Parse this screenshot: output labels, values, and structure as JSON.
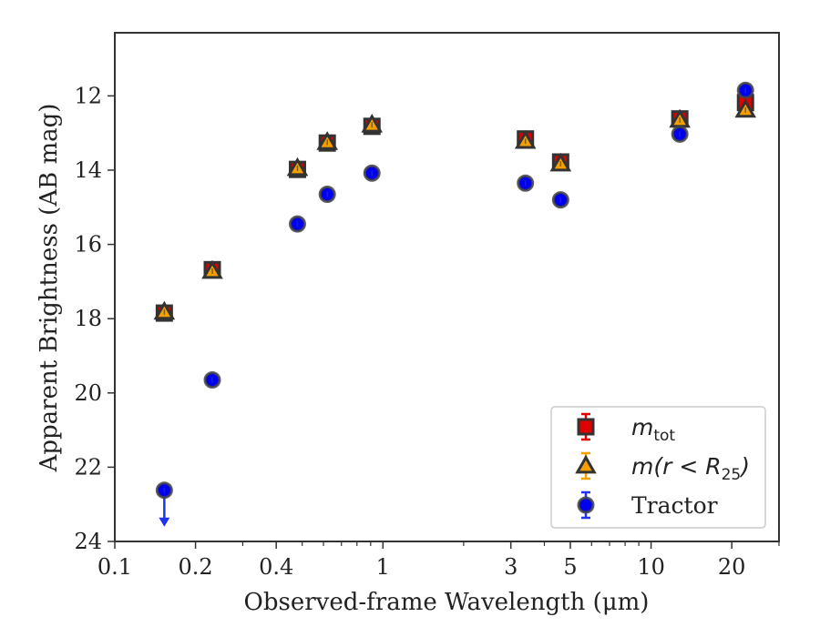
{
  "chart_data": {
    "type": "scatter",
    "xlabel": "Observed-frame Wavelength (μm)",
    "ylabel": "Apparent Brightness (AB mag)",
    "xscale": "log",
    "xlim": [
      0.1,
      30
    ],
    "ylim": [
      24,
      10.3
    ],
    "y_inverted": true,
    "grid": false,
    "legend_position": "lower-right",
    "x_ticks": [
      0.1,
      0.2,
      0.4,
      1,
      3,
      5,
      10,
      20
    ],
    "x_tick_labels": [
      "0.1",
      "0.2",
      "0.4",
      "1",
      "3",
      "5",
      "10",
      "20"
    ],
    "y_ticks": [
      12,
      14,
      16,
      18,
      20,
      22,
      24
    ],
    "y_tick_labels": [
      "12",
      "14",
      "16",
      "18",
      "20",
      "22",
      "24"
    ],
    "series": [
      {
        "name": "m_tot",
        "legend": {
          "main": "m",
          "sub": "tot"
        },
        "marker": "square",
        "color": "#e00000",
        "edge_color": "#333333",
        "error_color": "#e00000",
        "points": [
          {
            "x": 0.153,
            "y": 17.85
          },
          {
            "x": 0.231,
            "y": 16.68
          },
          {
            "x": 0.48,
            "y": 13.98
          },
          {
            "x": 0.62,
            "y": 13.27
          },
          {
            "x": 0.91,
            "y": 12.82
          },
          {
            "x": 3.4,
            "y": 13.16
          },
          {
            "x": 4.6,
            "y": 13.78
          },
          {
            "x": 12.8,
            "y": 12.62
          },
          {
            "x": 22.5,
            "y": 12.18
          }
        ]
      },
      {
        "name": "m(r < R25)",
        "legend": {
          "pre": "m(r < R",
          "sub": "25",
          "post": ")"
        },
        "marker": "triangle",
        "color": "#f5a000",
        "edge_color": "#333333",
        "error_color": "#f5a000",
        "points": [
          {
            "x": 0.153,
            "y": 17.82
          },
          {
            "x": 0.231,
            "y": 16.72
          },
          {
            "x": 0.48,
            "y": 13.95
          },
          {
            "x": 0.62,
            "y": 13.25
          },
          {
            "x": 0.91,
            "y": 12.78
          },
          {
            "x": 3.4,
            "y": 13.22
          },
          {
            "x": 4.6,
            "y": 13.83
          },
          {
            "x": 12.8,
            "y": 12.65
          },
          {
            "x": 22.5,
            "y": 12.38
          }
        ]
      },
      {
        "name": "Tractor",
        "legend": {
          "main": "Tractor"
        },
        "marker": "circle",
        "color": "#0000ee",
        "edge_color": "#444444",
        "error_color": "#2233ee",
        "points": [
          {
            "x": 0.153,
            "y": 22.62,
            "upper_limit": true
          },
          {
            "x": 0.231,
            "y": 19.65
          },
          {
            "x": 0.48,
            "y": 15.45
          },
          {
            "x": 0.62,
            "y": 14.65
          },
          {
            "x": 0.91,
            "y": 14.08
          },
          {
            "x": 3.4,
            "y": 14.35
          },
          {
            "x": 4.6,
            "y": 14.8
          },
          {
            "x": 12.8,
            "y": 13.03
          },
          {
            "x": 22.5,
            "y": 11.85
          }
        ]
      }
    ]
  }
}
